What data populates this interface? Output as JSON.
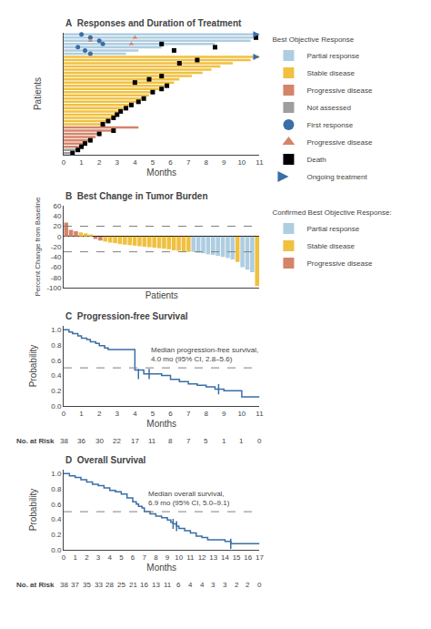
{
  "chart_data": [
    {
      "type": "bar",
      "orientation": "horizontal",
      "title": "A  Responses and Duration of Treatment",
      "xlabel": "Months",
      "ylabel": "Patients",
      "legend_title": "Best Objective Response",
      "categories": [
        null,
        null,
        null,
        null,
        null,
        null,
        null,
        null,
        null,
        null,
        null,
        null,
        null,
        null,
        null,
        null,
        null,
        null,
        null,
        null,
        null,
        null,
        null,
        null,
        null,
        null,
        null,
        null,
        null,
        null,
        null,
        null,
        null,
        null,
        null,
        null,
        null,
        null
      ],
      "series": [
        {
          "name": "Partial response",
          "color": "#aecde1",
          "values": [
            null,
            null,
            null,
            null,
            null,
            null,
            null,
            null,
            null,
            null,
            null,
            null,
            null,
            null,
            null,
            null,
            null,
            null,
            null,
            null,
            null,
            null,
            null,
            null,
            null,
            null,
            null,
            null,
            null,
            null,
            null,
            3.5,
            4.2,
            5.5,
            8.5,
            10.5,
            10.8,
            11.0
          ]
        },
        {
          "name": "Stable disease",
          "color": "#f0c040",
          "values": [
            null,
            null,
            null,
            null,
            null,
            null,
            null,
            null,
            null,
            2.2,
            2.5,
            2.8,
            3.0,
            3.2,
            3.5,
            3.8,
            4.2,
            4.5,
            4.8,
            5.0,
            5.5,
            5.8,
            6.2,
            6.5,
            7.2,
            7.8,
            8.3,
            8.8,
            9.5,
            10.5,
            11.0,
            null,
            null,
            null,
            null,
            null,
            null,
            null
          ]
        },
        {
          "name": "Progressive disease",
          "color": "#d4846a",
          "values": [
            null,
            null,
            1.0,
            1.2,
            1.5,
            1.8,
            2.0,
            2.8,
            4.2,
            null,
            null,
            null,
            null,
            null,
            null,
            null,
            null,
            null,
            null,
            null,
            null,
            null,
            null,
            null,
            null,
            null,
            null,
            null,
            null,
            null,
            null,
            null,
            null,
            null,
            null,
            null,
            null,
            null
          ]
        },
        {
          "name": "Not assessed",
          "color": "#9e9e9e",
          "values": [
            0.5,
            0.8,
            null,
            null,
            null,
            null,
            null,
            null,
            null,
            null,
            null,
            null,
            null,
            null,
            null,
            null,
            null,
            null,
            null,
            null,
            null,
            null,
            null,
            null,
            null,
            null,
            null,
            null,
            null,
            null,
            null,
            null,
            null,
            null,
            null,
            null,
            null,
            null
          ]
        },
        {
          "name": "First response",
          "type": "scatter",
          "marker": "circle",
          "color": "#3a6ea5",
          "x": [
            1.5,
            1.2,
            0.8,
            2.2,
            2.0,
            1.5,
            1.0
          ],
          "patients": [
            32,
            33,
            34,
            35,
            36,
            37,
            38
          ]
        },
        {
          "name": "Progressive disease",
          "type": "scatter",
          "marker": "triangle",
          "color": "#d4846a",
          "x": [
            3.8,
            1.5,
            4.0
          ],
          "patients": [
            35,
            36,
            37
          ]
        },
        {
          "name": "Death",
          "type": "scatter",
          "marker": "square",
          "color": "#000000",
          "x": [
            0.5,
            0.8,
            1.0,
            1.2,
            1.5,
            2.0,
            2.8,
            2.2,
            2.5,
            2.8,
            3.0,
            3.2,
            3.5,
            3.8,
            4.2,
            4.5,
            5.0,
            5.5,
            5.8,
            4.0,
            4.8,
            5.5,
            6.5,
            7.5,
            6.2,
            8.5,
            5.5,
            10.8
          ],
          "patients": [
            1,
            2,
            3,
            4,
            5,
            7,
            8,
            10,
            11,
            12,
            13,
            14,
            15,
            16,
            17,
            18,
            20,
            21,
            22,
            23,
            24,
            25,
            29,
            30,
            33,
            34,
            35,
            37
          ]
        },
        {
          "name": "Ongoing treatment",
          "type": "scatter",
          "marker": "arrow",
          "color": "#3a6ea5",
          "x": [
            11.0,
            11.0
          ],
          "patients": [
            31,
            38
          ]
        }
      ],
      "xlim": [
        0,
        11
      ],
      "xticks": [
        0,
        1,
        2,
        3,
        4,
        5,
        6,
        7,
        8,
        9,
        10,
        11
      ],
      "grid": false,
      "tick_labels": "x",
      "legend": "right"
    },
    {
      "type": "bar",
      "title": "B  Best Change in Tumor Burden",
      "subtitle": "Confirmed Best Objective Response:",
      "xlabel": "Patients",
      "ylabel": "Percent Change from Baseline",
      "categories": [
        null,
        null,
        null,
        null,
        null,
        null,
        null,
        null,
        null,
        null,
        null,
        null,
        null,
        null,
        null,
        null,
        null,
        null,
        null,
        null,
        null,
        null,
        null,
        null,
        null,
        null,
        null,
        null,
        null,
        null,
        null,
        null,
        null,
        null,
        null,
        null,
        null,
        null,
        null,
        null
      ],
      "series": [
        {
          "name": "Partial response",
          "color": "#aecde1",
          "values": [
            null,
            null,
            null,
            null,
            null,
            null,
            null,
            null,
            null,
            null,
            null,
            null,
            null,
            null,
            null,
            null,
            null,
            null,
            null,
            null,
            null,
            null,
            null,
            null,
            null,
            null,
            -30,
            -32,
            -33,
            -35,
            -36,
            -38,
            -40,
            -42,
            -45,
            null,
            -60,
            -65,
            -70,
            null
          ]
        },
        {
          "name": "Stable disease",
          "color": "#f0c040",
          "values": [
            null,
            null,
            null,
            8,
            6,
            4,
            null,
            null,
            -10,
            -12,
            -13,
            -15,
            -16,
            -17,
            -18,
            -19,
            -20,
            -21,
            -22,
            -23,
            -24,
            -25,
            -27,
            -28,
            -29,
            -30,
            null,
            null,
            null,
            null,
            null,
            null,
            null,
            null,
            null,
            -50,
            null,
            null,
            null,
            -97
          ]
        },
        {
          "name": "Progressive disease",
          "color": "#d4846a",
          "values": [
            27,
            13,
            10,
            null,
            null,
            null,
            -5,
            -8,
            null,
            null,
            null,
            null,
            null,
            null,
            null,
            null,
            null,
            null,
            null,
            null,
            null,
            null,
            null,
            null,
            null,
            null,
            null,
            null,
            null,
            null,
            null,
            null,
            null,
            null,
            null,
            null,
            null,
            null,
            null,
            null
          ]
        }
      ],
      "ylim": [
        -100,
        60
      ],
      "yticks": [
        -100,
        -80,
        -60,
        -40,
        -20,
        0,
        20,
        40,
        60
      ],
      "hlines": [
        20,
        -30
      ],
      "grid": false,
      "tick_labels": "y",
      "legend": "right"
    },
    {
      "type": "step",
      "title": "C  Progression-free Survival",
      "xlabel": "Months",
      "ylabel": "Probability",
      "x": [
        0,
        0.3,
        0.5,
        0.8,
        1.0,
        1.3,
        1.5,
        1.8,
        2.0,
        2.3,
        2.5,
        2.8,
        3.0,
        3.5,
        4.0,
        4.5,
        5.0,
        5.5,
        6.0,
        6.5,
        7.0,
        7.5,
        8.0,
        8.5,
        9.0,
        10.0,
        10.5,
        11.0
      ],
      "values": [
        1.0,
        0.97,
        0.95,
        0.92,
        0.89,
        0.87,
        0.84,
        0.82,
        0.79,
        0.76,
        0.74,
        0.74,
        0.74,
        0.74,
        0.47,
        0.42,
        0.42,
        0.4,
        0.35,
        0.32,
        0.29,
        0.27,
        0.25,
        0.22,
        0.2,
        0.12,
        0.12,
        0.12
      ],
      "color": "#3a6ea5",
      "censors": {
        "x": [
          4.2,
          4.8,
          8.7
        ],
        "values": [
          0.42,
          0.42,
          0.22
        ],
        "marker": "line"
      },
      "hlines": [
        0.5
      ],
      "annotations": [
        {
          "text": "Median progression-free survival,\n4.0 mo (95% CI, 2.8–5.6)",
          "x": 4.8,
          "y": 0.54
        }
      ],
      "at_risk": {
        "label": "No. at Risk",
        "x": [
          0,
          1,
          2,
          3,
          4,
          5,
          6,
          7,
          8,
          9,
          10,
          11
        ],
        "values": [
          38,
          36,
          30,
          22,
          17,
          11,
          8,
          7,
          5,
          1,
          1,
          0
        ]
      },
      "xlim": [
        0,
        11
      ],
      "xticks": [
        0,
        1,
        2,
        3,
        4,
        5,
        6,
        7,
        8,
        9,
        10,
        11
      ],
      "ylim": [
        0.0,
        1.05
      ],
      "yticks": [
        {
          "value": 0,
          "label": "0.0"
        },
        0.2,
        0.4,
        0.6,
        0.8,
        {
          "value": 1,
          "label": "1.0"
        }
      ],
      "grid": false
    },
    {
      "type": "step",
      "title": "D  Overall Survival",
      "xlabel": "Months",
      "ylabel": "Probability",
      "x": [
        0,
        0.5,
        1.0,
        1.5,
        2.0,
        2.5,
        3.0,
        3.5,
        4.0,
        4.5,
        5.0,
        5.5,
        6.0,
        6.3,
        6.5,
        6.8,
        7.0,
        7.5,
        8.0,
        8.5,
        9.0,
        9.3,
        9.5,
        9.8,
        10.0,
        10.5,
        11.0,
        11.5,
        12.0,
        12.5,
        14.0,
        14.5,
        16.5,
        17.0
      ],
      "values": [
        1.0,
        0.97,
        0.95,
        0.92,
        0.89,
        0.86,
        0.84,
        0.81,
        0.78,
        0.76,
        0.73,
        0.68,
        0.63,
        0.6,
        0.57,
        0.55,
        0.5,
        0.47,
        0.44,
        0.42,
        0.39,
        0.36,
        0.34,
        0.31,
        0.28,
        0.25,
        0.22,
        0.18,
        0.16,
        0.13,
        0.11,
        0.08,
        0.08,
        0.08
      ],
      "color": "#3a6ea5",
      "censors": {
        "x": [
          9.5,
          9.8,
          14.5
        ],
        "values": [
          0.34,
          0.31,
          0.08
        ],
        "marker": "line"
      },
      "hlines": [
        0.5
      ],
      "annotations": [
        {
          "text": "Median overall survival,\n6.9 mo (95% CI, 5.0–9.1)",
          "x": 7.2,
          "y": 0.54
        }
      ],
      "at_risk": {
        "label": "No. at Risk",
        "x": [
          0,
          1,
          2,
          3,
          4,
          5,
          6,
          7,
          8,
          9,
          10,
          11,
          12,
          13,
          14,
          15,
          16,
          17
        ],
        "values": [
          38,
          37,
          35,
          33,
          28,
          25,
          21,
          16,
          13,
          11,
          6,
          4,
          4,
          3,
          3,
          2,
          2,
          0
        ]
      },
      "xlim": [
        0,
        17
      ],
      "xticks": [
        0,
        1,
        2,
        3,
        4,
        5,
        6,
        7,
        8,
        9,
        10,
        11,
        12,
        13,
        14,
        15,
        16,
        17
      ],
      "ylim": [
        0.0,
        1.05
      ],
      "yticks": [
        {
          "value": 0,
          "label": "0.0"
        },
        0.2,
        0.4,
        0.6,
        0.8,
        {
          "value": 1,
          "label": "1.0"
        }
      ],
      "grid": false
    }
  ]
}
